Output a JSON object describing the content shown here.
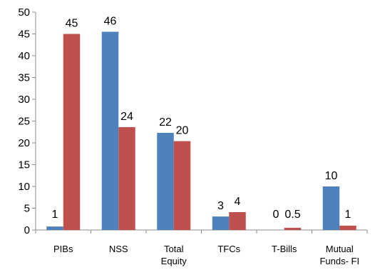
{
  "chart_data": {
    "type": "bar",
    "title": "",
    "xlabel": "",
    "ylabel": "",
    "ylim": [
      0,
      50
    ],
    "yticks": [
      0,
      5,
      10,
      15,
      20,
      25,
      30,
      35,
      40,
      45,
      50
    ],
    "grid": false,
    "legend": "none",
    "categories": [
      [
        "PIBs"
      ],
      [
        "NSS"
      ],
      [
        "Total",
        "Equity"
      ],
      [
        "TFCs"
      ],
      [
        "T-Bills"
      ],
      [
        "Mutual",
        "Funds- FI"
      ]
    ],
    "series": [
      {
        "color": "#4f81bd",
        "values": [
          0.8,
          45.5,
          22.3,
          3.1,
          0,
          10
        ],
        "labels": [
          "1",
          "46",
          "22",
          "3",
          "0",
          "10"
        ]
      },
      {
        "color": "#c0504d",
        "values": [
          45,
          23.6,
          20.4,
          4.1,
          0.5,
          1
        ],
        "labels": [
          "45",
          "24",
          "20",
          "4",
          "0.5",
          "1"
        ]
      }
    ]
  }
}
